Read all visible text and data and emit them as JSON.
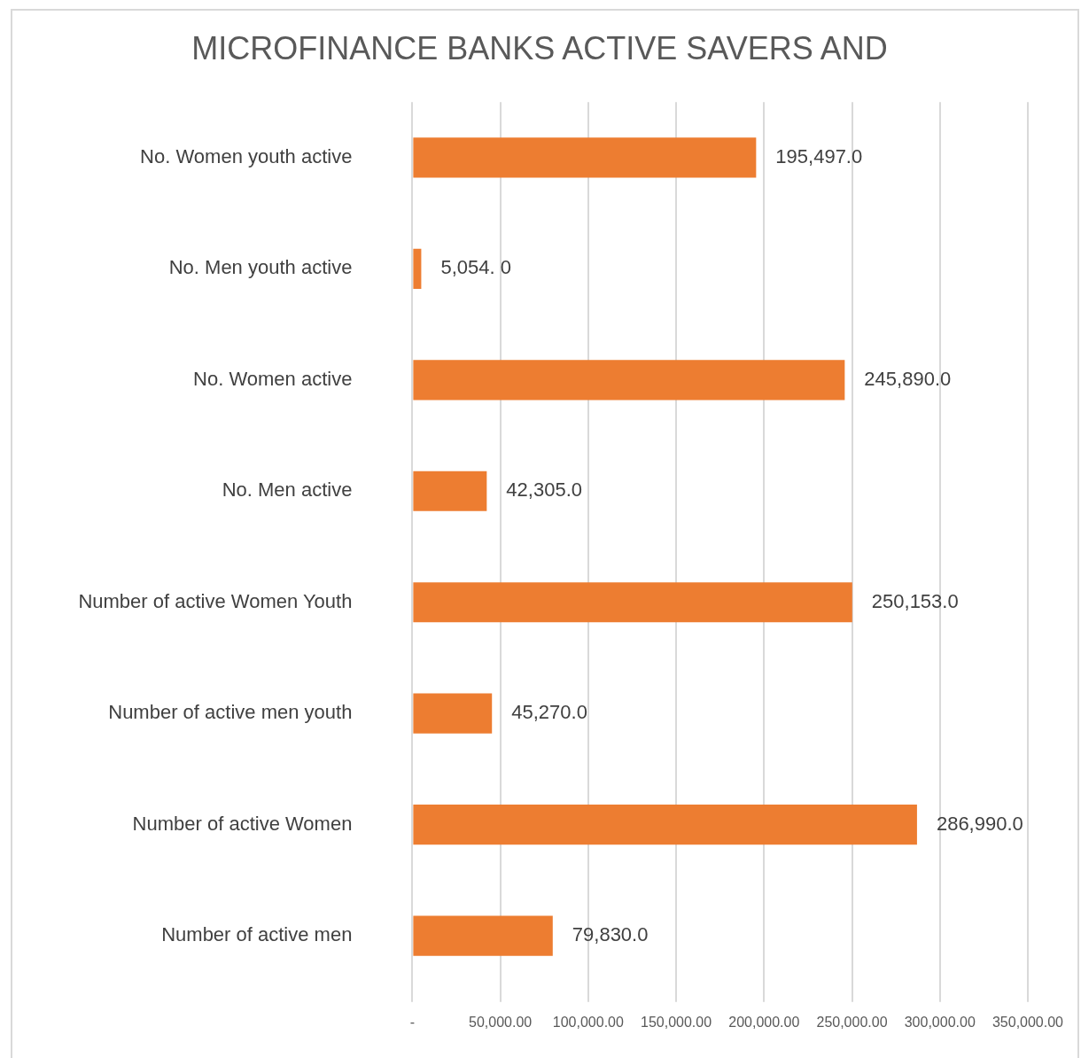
{
  "chart_data": {
    "type": "bar",
    "orientation": "horizontal",
    "title": "MICROFINANCE BANKS ACTIVE SAVERS AND",
    "categories": [
      "No. Women youth active",
      "No. Men youth active",
      "No. Women active",
      "No. Men active",
      "Number of active Women Youth",
      "Number of active men youth",
      "Number of active Women",
      "Number of active men"
    ],
    "values": [
      195497,
      5054,
      245890,
      42305,
      250153,
      45270,
      286990,
      79830
    ],
    "value_labels": [
      "195,497.0",
      "5,054. 0",
      "245,890.0",
      "42,305.0",
      "250,153.0",
      "45,270.0",
      "286,990.0",
      "79,830.0"
    ],
    "color": "#ed7d31",
    "xlim": [
      0,
      350000
    ],
    "xticks": [
      {
        "value": 0,
        "label": "-"
      },
      {
        "value": 50000,
        "label": "50,000.00"
      },
      {
        "value": 100000,
        "label": "100,000.00"
      },
      {
        "value": 150000,
        "label": "150,000.00"
      },
      {
        "value": 200000,
        "label": "200,000.00"
      },
      {
        "value": 250000,
        "label": "250,000.00"
      },
      {
        "value": 300000,
        "label": "300,000.00"
      },
      {
        "value": 350000,
        "label": "350,000.00"
      }
    ],
    "grid": "x"
  }
}
